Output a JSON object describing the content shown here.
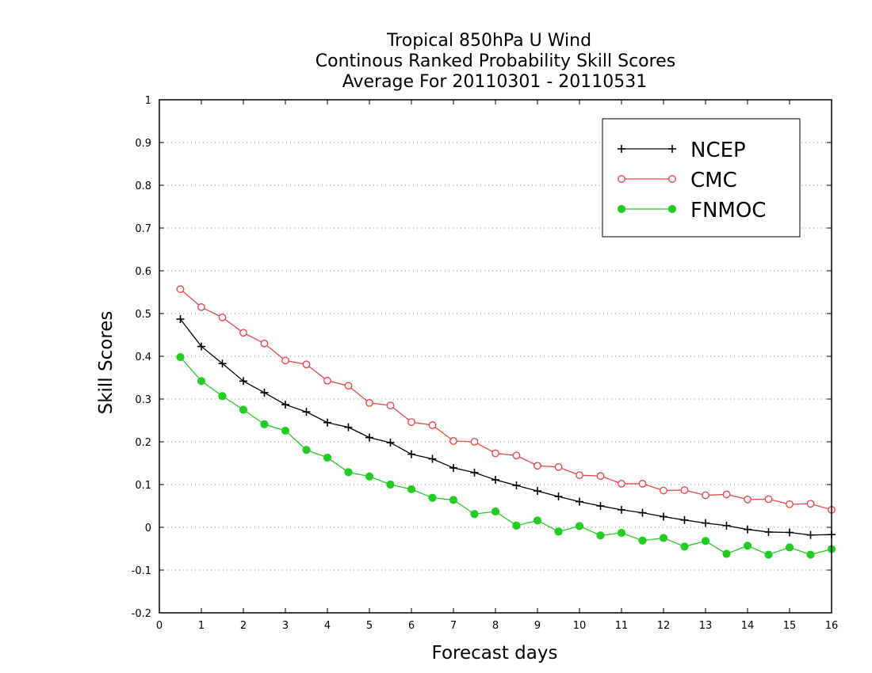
{
  "chart_data": {
    "type": "line",
    "title": [
      "Tropical 850hPa U Wind",
      "Continous Ranked Probability Skill Scores",
      "Average For 20110301 - 20110531"
    ],
    "xlabel": "Forecast days",
    "ylabel": "Skill Scores",
    "xlim": [
      0,
      16
    ],
    "ylim": [
      -0.2,
      1
    ],
    "xticks": [
      "0",
      "1",
      "2",
      "3",
      "4",
      "5",
      "6",
      "7",
      "8",
      "9",
      "10",
      "11",
      "12",
      "13",
      "14",
      "15",
      "16"
    ],
    "yticks": [
      "-0.2",
      "-0.1",
      "0",
      "0.1",
      "0.2",
      "0.3",
      "0.4",
      "0.5",
      "0.6",
      "0.7",
      "0.8",
      "0.9",
      "1"
    ],
    "grid": "horizontal dotted",
    "legend_position": "top-right",
    "x": [
      0.5,
      1,
      1.5,
      2,
      2.5,
      3,
      3.5,
      4,
      4.5,
      5,
      5.5,
      6,
      6.5,
      7,
      7.5,
      8,
      8.5,
      9,
      9.5,
      10,
      10.5,
      11,
      11.5,
      12,
      12.5,
      13,
      13.5,
      14,
      14.5,
      15,
      15.5,
      16
    ],
    "series": [
      {
        "name": "NCEP",
        "color": "#000000",
        "marker": "plus",
        "values": [
          0.487,
          0.423,
          0.383,
          0.342,
          0.315,
          0.287,
          0.27,
          0.245,
          0.234,
          0.21,
          0.198,
          0.171,
          0.16,
          0.139,
          0.128,
          0.111,
          0.098,
          0.085,
          0.072,
          0.06,
          0.05,
          0.041,
          0.034,
          0.025,
          0.017,
          0.01,
          0.004,
          -0.005,
          -0.011,
          -0.012,
          -0.018,
          -0.017
        ]
      },
      {
        "name": "CMC",
        "color": "#e8464b",
        "marker": "open-circle",
        "values": [
          0.557,
          0.515,
          0.491,
          0.455,
          0.43,
          0.39,
          0.381,
          0.343,
          0.331,
          0.291,
          0.285,
          0.246,
          0.239,
          0.202,
          0.2,
          0.173,
          0.168,
          0.144,
          0.141,
          0.122,
          0.12,
          0.102,
          0.102,
          0.086,
          0.087,
          0.075,
          0.077,
          0.065,
          0.066,
          0.054,
          0.055,
          0.041
        ]
      },
      {
        "name": "FNMOC",
        "color": "#22cc22",
        "marker": "filled-circle",
        "values": [
          0.398,
          0.342,
          0.307,
          0.275,
          0.241,
          0.226,
          0.181,
          0.163,
          0.129,
          0.119,
          0.1,
          0.089,
          0.069,
          0.064,
          0.031,
          0.037,
          0.004,
          0.016,
          -0.01,
          0.003,
          -0.019,
          -0.013,
          -0.031,
          -0.025,
          -0.045,
          -0.032,
          -0.062,
          -0.043,
          -0.064,
          -0.047,
          -0.064,
          -0.051
        ]
      }
    ]
  }
}
